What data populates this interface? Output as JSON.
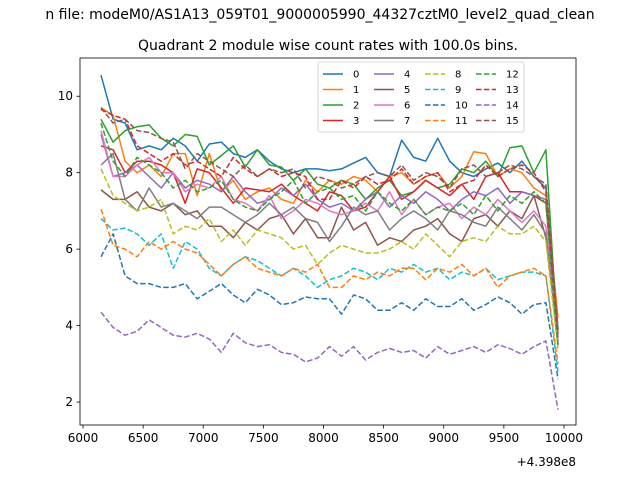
{
  "figure": {
    "suptitle": "n file: modeM0/AS1A13_059T01_9000005990_44327cztM0_level2_quad_clean",
    "title": "Quadrant 2 module wise count rates with 100.0s bins.",
    "offset_text": "+4.398e8"
  },
  "chart_data": {
    "type": "line",
    "title": "Quadrant 2 module wise count rates with 100.0s bins.",
    "xlabel": "",
    "ylabel": "",
    "x_offset": 439800000,
    "xlim": [
      5975,
      10100
    ],
    "ylim": [
      1.4,
      11.0
    ],
    "xticks": [
      6000,
      6500,
      7000,
      7500,
      8000,
      8500,
      9000,
      9500,
      10000
    ],
    "yticks": [
      2,
      4,
      6,
      8,
      10
    ],
    "grid": false,
    "legend_position": "top-right",
    "legend_columns": 4,
    "x": [
      6150,
      6250,
      6350,
      6450,
      6550,
      6650,
      6750,
      6850,
      6950,
      7050,
      7150,
      7250,
      7350,
      7450,
      7550,
      7650,
      7750,
      7850,
      7950,
      8050,
      8150,
      8250,
      8350,
      8450,
      8550,
      8650,
      8750,
      8850,
      8950,
      9050,
      9150,
      9250,
      9350,
      9450,
      9550,
      9650,
      9750,
      9850,
      9950
    ],
    "series": [
      {
        "name": "0",
        "color": "#1f77b4",
        "dash": "solid",
        "values": [
          10.55,
          9.4,
          9.3,
          8.6,
          8.7,
          8.6,
          8.9,
          8.7,
          8.3,
          8.75,
          8.8,
          8.5,
          8.4,
          8.6,
          8.3,
          8.1,
          8.0,
          8.1,
          8.1,
          8.05,
          8.1,
          8.25,
          8.4,
          8.0,
          7.9,
          8.85,
          8.4,
          8.3,
          8.9,
          8.3,
          8.0,
          7.9,
          8.1,
          8.25,
          8.0,
          8.3,
          7.9,
          7.6,
          3.9
        ]
      },
      {
        "name": "1",
        "color": "#ff7f0e",
        "dash": "solid",
        "values": [
          9.7,
          9.5,
          8.3,
          8.0,
          8.2,
          7.9,
          8.5,
          8.5,
          7.4,
          8.5,
          7.5,
          7.8,
          7.3,
          7.5,
          7.6,
          7.3,
          7.2,
          7.8,
          7.5,
          7.8,
          7.7,
          7.9,
          7.8,
          7.5,
          7.9,
          8.0,
          7.7,
          7.9,
          8.0,
          7.6,
          7.9,
          8.55,
          8.5,
          7.9,
          8.1,
          8.0,
          7.6,
          7.4,
          4.2
        ]
      },
      {
        "name": "2",
        "color": "#2ca02c",
        "dash": "solid",
        "values": [
          9.4,
          8.8,
          9.1,
          9.2,
          9.25,
          8.9,
          8.7,
          9.0,
          8.95,
          8.2,
          8.45,
          8.7,
          8.15,
          8.6,
          8.2,
          8.15,
          7.8,
          8.1,
          7.7,
          7.6,
          7.8,
          7.7,
          7.3,
          7.6,
          7.8,
          7.4,
          7.5,
          7.8,
          7.6,
          7.7,
          8.1,
          8.0,
          8.3,
          7.9,
          8.65,
          8.7,
          8.0,
          8.6,
          3.5
        ]
      },
      {
        "name": "3",
        "color": "#d62728",
        "dash": "solid",
        "values": [
          8.7,
          8.6,
          8.0,
          8.3,
          8.3,
          8.2,
          8.0,
          7.2,
          8.1,
          8.0,
          7.6,
          7.2,
          7.6,
          7.55,
          7.5,
          7.7,
          7.4,
          7.2,
          7.0,
          7.5,
          7.4,
          7.0,
          7.1,
          7.5,
          7.9,
          7.3,
          7.5,
          7.8,
          7.6,
          7.4,
          7.7,
          7.3,
          7.9,
          8.0,
          7.5,
          7.5,
          7.4,
          7.2,
          3.6
        ]
      },
      {
        "name": "4",
        "color": "#9467bd",
        "dash": "solid",
        "values": [
          9.0,
          7.9,
          8.0,
          8.2,
          7.9,
          7.6,
          8.0,
          7.6,
          7.8,
          7.7,
          7.5,
          7.9,
          7.5,
          7.2,
          7.3,
          7.6,
          7.4,
          7.7,
          7.3,
          7.1,
          7.2,
          7.0,
          7.3,
          7.5,
          7.1,
          7.4,
          7.2,
          7.5,
          7.3,
          7.0,
          7.3,
          7.5,
          7.4,
          7.6,
          7.2,
          7.5,
          7.4,
          7.3,
          3.7
        ]
      },
      {
        "name": "5",
        "color": "#8c564b",
        "dash": "solid",
        "values": [
          7.55,
          7.3,
          7.3,
          7.5,
          7.1,
          7.0,
          7.2,
          6.9,
          7.0,
          6.6,
          6.6,
          6.3,
          6.7,
          6.5,
          6.8,
          6.9,
          6.4,
          6.8,
          6.3,
          6.3,
          7.1,
          6.5,
          6.7,
          6.1,
          6.3,
          6.2,
          6.5,
          6.6,
          6.8,
          6.4,
          6.2,
          6.8,
          6.9,
          6.6,
          7.0,
          6.8,
          7.4,
          6.3,
          3.8
        ]
      },
      {
        "name": "6",
        "color": "#e377c2",
        "dash": "solid",
        "values": [
          9.1,
          7.9,
          7.9,
          8.2,
          8.4,
          8.0,
          8.0,
          7.5,
          7.7,
          7.6,
          7.9,
          7.3,
          7.2,
          7.0,
          7.4,
          6.8,
          7.0,
          7.3,
          7.2,
          7.0,
          6.9,
          7.0,
          7.2,
          7.0,
          7.5,
          6.9,
          7.3,
          6.9,
          7.1,
          7.2,
          6.8,
          7.1,
          6.9,
          7.3,
          7.0,
          6.7,
          7.0,
          6.6,
          3.6
        ]
      },
      {
        "name": "7",
        "color": "#7f7f7f",
        "dash": "solid",
        "values": [
          8.2,
          8.5,
          7.3,
          7.0,
          7.6,
          7.1,
          7.2,
          7.0,
          6.8,
          7.1,
          7.1,
          6.9,
          6.7,
          6.9,
          7.2,
          6.9,
          7.1,
          6.8,
          6.7,
          6.2,
          6.6,
          7.1,
          6.9,
          7.0,
          6.5,
          6.8,
          7.0,
          6.8,
          6.5,
          7.0,
          6.9,
          6.7,
          6.6,
          7.1,
          6.8,
          6.5,
          6.9,
          6.4,
          3.5
        ]
      },
      {
        "name": "8",
        "color": "#bcbd22",
        "dash": "dashed",
        "values": [
          8.1,
          7.4,
          7.2,
          7.0,
          7.1,
          7.3,
          6.4,
          6.6,
          6.5,
          6.8,
          6.2,
          6.5,
          6.1,
          6.5,
          6.4,
          6.3,
          6.0,
          6.1,
          5.6,
          5.9,
          6.1,
          6.0,
          5.9,
          5.9,
          6.0,
          6.2,
          6.0,
          6.4,
          6.1,
          5.8,
          6.2,
          6.3,
          6.2,
          6.6,
          6.4,
          6.4,
          6.6,
          6.2,
          3.4
        ]
      },
      {
        "name": "9",
        "color": "#17becf",
        "dash": "dashed",
        "values": [
          6.8,
          6.5,
          6.55,
          6.4,
          6.1,
          6.4,
          5.5,
          6.2,
          6.0,
          5.5,
          5.3,
          5.6,
          5.8,
          5.7,
          5.5,
          5.3,
          5.5,
          5.3,
          5.0,
          5.2,
          5.3,
          5.5,
          5.4,
          5.2,
          5.5,
          5.4,
          5.6,
          5.4,
          5.5,
          5.2,
          5.4,
          5.3,
          5.5,
          5.2,
          5.3,
          5.4,
          5.4,
          5.3,
          2.8
        ]
      },
      {
        "name": "10",
        "color": "#1f77b4",
        "dash": "dashed",
        "values": [
          5.8,
          6.4,
          5.3,
          5.1,
          5.1,
          5.0,
          5.0,
          5.1,
          4.7,
          4.9,
          5.1,
          4.8,
          4.6,
          4.95,
          4.8,
          4.55,
          4.6,
          4.75,
          4.7,
          4.7,
          4.3,
          4.8,
          4.7,
          4.4,
          4.4,
          4.6,
          4.4,
          4.7,
          4.5,
          4.5,
          4.7,
          4.4,
          4.55,
          4.75,
          4.6,
          4.3,
          4.55,
          4.6,
          2.6
        ]
      },
      {
        "name": "11",
        "color": "#ff7f0e",
        "dash": "dashed",
        "values": [
          7.05,
          6.1,
          6.0,
          5.8,
          6.2,
          6.0,
          6.2,
          6.0,
          5.9,
          5.6,
          5.3,
          5.6,
          5.8,
          5.5,
          5.4,
          5.3,
          5.5,
          5.4,
          5.6,
          5.0,
          5.0,
          5.3,
          5.2,
          5.4,
          5.3,
          5.5,
          5.5,
          5.2,
          5.5,
          5.4,
          5.6,
          5.3,
          5.5,
          5.0,
          5.3,
          5.4,
          5.5,
          5.3,
          3.0
        ]
      },
      {
        "name": "12",
        "color": "#2ca02c",
        "dash": "dashed",
        "values": [
          9.3,
          8.3,
          7.9,
          8.4,
          8.2,
          8.0,
          7.6,
          7.8,
          7.5,
          7.6,
          7.8,
          7.3,
          7.1,
          7.0,
          7.3,
          7.5,
          7.8,
          7.2,
          7.5,
          7.6,
          7.3,
          7.4,
          7.0,
          7.5,
          7.2,
          7.0,
          7.3,
          6.9,
          7.1,
          7.0,
          7.2,
          6.9,
          7.4,
          7.0,
          7.4,
          7.2,
          7.5,
          7.2,
          3.5
        ]
      },
      {
        "name": "13",
        "color": "#d62728",
        "dash": "dashed",
        "values": [
          9.65,
          9.5,
          9.4,
          8.7,
          8.5,
          8.3,
          8.5,
          8.2,
          8.3,
          8.1,
          7.9,
          8.4,
          8.1,
          7.9,
          8.1,
          7.9,
          8.0,
          7.9,
          7.3,
          7.3,
          7.8,
          7.6,
          7.9,
          7.7,
          7.8,
          8.1,
          7.7,
          7.9,
          8.0,
          7.5,
          7.7,
          7.8,
          8.2,
          7.9,
          8.1,
          8.2,
          8.0,
          7.5,
          3.8
        ]
      },
      {
        "name": "14",
        "color": "#9467bd",
        "dash": "dashed",
        "values": [
          4.35,
          3.95,
          3.75,
          3.85,
          4.15,
          3.95,
          3.75,
          3.7,
          3.8,
          3.65,
          3.3,
          3.8,
          3.55,
          3.45,
          3.5,
          3.3,
          3.25,
          3.05,
          3.15,
          3.45,
          3.2,
          3.45,
          3.1,
          3.3,
          3.4,
          3.3,
          3.35,
          3.15,
          3.45,
          3.25,
          3.35,
          3.45,
          3.3,
          3.5,
          3.4,
          3.25,
          3.45,
          3.6,
          1.8
        ]
      },
      {
        "name": "15",
        "color": "#8c564b",
        "dash": "dashed",
        "values": [
          9.7,
          9.3,
          9.4,
          9.1,
          9.05,
          8.9,
          8.8,
          8.1,
          8.5,
          8.3,
          8.1,
          7.9,
          8.2,
          7.9,
          8.1,
          8.0,
          8.1,
          7.6,
          7.9,
          7.8,
          7.6,
          7.7,
          7.9,
          8.0,
          7.9,
          8.2,
          7.8,
          8.0,
          7.9,
          7.6,
          8.1,
          8.2,
          7.9,
          8.0,
          8.2,
          8.1,
          7.9,
          7.7,
          3.9
        ]
      }
    ]
  }
}
